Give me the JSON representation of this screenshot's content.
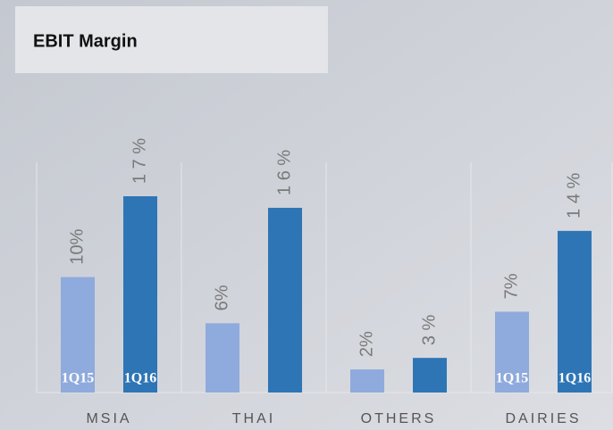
{
  "chart_data": {
    "type": "bar",
    "title": "EBIT Margin",
    "categories": [
      "MSIA",
      "THAI",
      "OTHERS",
      "DAIRIES"
    ],
    "series": [
      {
        "name": "1Q15",
        "color": "#8faadc",
        "values": [
          10,
          6,
          2,
          7
        ],
        "value_labels": [
          "10%",
          "6%",
          "2%",
          "7%"
        ]
      },
      {
        "name": "1Q16",
        "color": "#2e75b6",
        "values": [
          17,
          16,
          3,
          14
        ],
        "value_labels": [
          "1 7 %",
          "1 6 %",
          "3 %",
          "1 4 %"
        ]
      }
    ]
  }
}
